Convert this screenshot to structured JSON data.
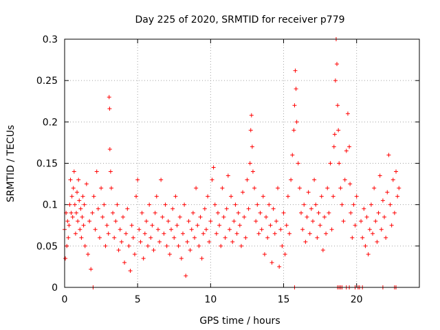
{
  "chart_data": {
    "type": "scatter",
    "title": "Day 225 of 2020, SRMTID for receiver p779",
    "xlabel": "GPS time / hours",
    "ylabel": "SRMTID / TECUs",
    "xlim": [
      0,
      24.3
    ],
    "ylim": [
      0,
      0.3
    ],
    "xticks": [
      0,
      5,
      10,
      15,
      20
    ],
    "xtick_labels": [
      "0",
      "5",
      "10",
      "15",
      "20"
    ],
    "yticks": [
      0,
      0.05,
      0.1,
      0.15,
      0.2,
      0.25,
      0.3
    ],
    "ytick_labels": [
      "0",
      "0.05",
      "0.1",
      "0.15",
      "0.2",
      "0.25",
      "0.3"
    ],
    "grid": true,
    "marker": "+",
    "color": "#ff0000",
    "series": [
      {
        "name": "SRMTID",
        "points": [
          [
            0.0,
            0.07
          ],
          [
            0.05,
            0.035
          ],
          [
            0.1,
            0.09
          ],
          [
            0.15,
            0.05
          ],
          [
            0.2,
            0.08
          ],
          [
            0.25,
            0.06
          ],
          [
            0.3,
            0.075
          ],
          [
            0.35,
            0.1
          ],
          [
            0.4,
            0.13
          ],
          [
            0.45,
            0.09
          ],
          [
            0.5,
            0.11
          ],
          [
            0.55,
            0.085
          ],
          [
            0.6,
            0.12
          ],
          [
            0.65,
            0.14
          ],
          [
            0.7,
            0.1
          ],
          [
            0.75,
            0.065
          ],
          [
            0.8,
            0.09
          ],
          [
            0.85,
            0.115
          ],
          [
            0.9,
            0.08
          ],
          [
            0.95,
            0.13
          ],
          [
            1.0,
            0.105
          ],
          [
            1.05,
            0.07
          ],
          [
            1.1,
            0.095
          ],
          [
            1.15,
            0.06
          ],
          [
            1.2,
            0.085
          ],
          [
            1.25,
            0.11
          ],
          [
            1.3,
            0.075
          ],
          [
            1.35,
            0.1
          ],
          [
            1.4,
            0.05
          ],
          [
            1.5,
            0.125
          ],
          [
            1.6,
            0.04
          ],
          [
            1.7,
            0.08
          ],
          [
            1.8,
            0.022
          ],
          [
            1.9,
            0.09
          ],
          [
            2.0,
            0.11
          ],
          [
            2.1,
            0.07
          ],
          [
            2.2,
            0.14
          ],
          [
            2.3,
            0.095
          ],
          [
            2.4,
            0.06
          ],
          [
            2.5,
            0.12
          ],
          [
            2.6,
            0.085
          ],
          [
            2.7,
            0.1
          ],
          [
            2.8,
            0.05
          ],
          [
            2.9,
            0.075
          ],
          [
            3.0,
            0.065
          ],
          [
            3.05,
            0.23
          ],
          [
            3.08,
            0.216
          ],
          [
            3.1,
            0.167
          ],
          [
            3.15,
            0.14
          ],
          [
            3.2,
            0.12
          ],
          [
            3.3,
            0.09
          ],
          [
            3.4,
            0.06
          ],
          [
            3.5,
            0.08
          ],
          [
            3.6,
            0.1
          ],
          [
            3.7,
            0.045
          ],
          [
            3.8,
            0.07
          ],
          [
            3.9,
            0.055
          ],
          [
            4.0,
            0.085
          ],
          [
            4.1,
            0.03
          ],
          [
            4.2,
            0.065
          ],
          [
            4.3,
            0.095
          ],
          [
            4.4,
            0.05
          ],
          [
            4.5,
            0.02
          ],
          [
            4.6,
            0.075
          ],
          [
            4.7,
            0.06
          ],
          [
            4.8,
            0.04
          ],
          [
            4.9,
            0.11
          ],
          [
            5.0,
            0.13
          ],
          [
            5.1,
            0.07
          ],
          [
            5.2,
            0.055
          ],
          [
            5.3,
            0.09
          ],
          [
            5.4,
            0.035
          ],
          [
            5.5,
            0.065
          ],
          [
            5.6,
            0.08
          ],
          [
            5.7,
            0.05
          ],
          [
            5.8,
            0.1
          ],
          [
            5.9,
            0.06
          ],
          [
            6.0,
            0.075
          ],
          [
            6.1,
            0.045
          ],
          [
            6.2,
            0.09
          ],
          [
            6.3,
            0.11
          ],
          [
            6.4,
            0.07
          ],
          [
            6.5,
            0.055
          ],
          [
            6.6,
            0.13
          ],
          [
            6.7,
            0.085
          ],
          [
            6.8,
            0.065
          ],
          [
            6.9,
            0.1
          ],
          [
            7.0,
            0.05
          ],
          [
            7.1,
            0.08
          ],
          [
            7.2,
            0.04
          ],
          [
            7.3,
            0.07
          ],
          [
            7.4,
            0.095
          ],
          [
            7.5,
            0.06
          ],
          [
            7.6,
            0.11
          ],
          [
            7.7,
            0.075
          ],
          [
            7.8,
            0.05
          ],
          [
            7.9,
            0.085
          ],
          [
            8.0,
            0.035
          ],
          [
            8.1,
            0.065
          ],
          [
            8.2,
            0.1
          ],
          [
            8.3,
            0.014
          ],
          [
            8.4,
            0.055
          ],
          [
            8.5,
            0.08
          ],
          [
            8.6,
            0.045
          ],
          [
            8.7,
            0.07
          ],
          [
            8.8,
            0.09
          ],
          [
            8.9,
            0.06
          ],
          [
            9.0,
            0.12
          ],
          [
            9.1,
            0.075
          ],
          [
            9.2,
            0.05
          ],
          [
            9.3,
            0.085
          ],
          [
            9.4,
            0.035
          ],
          [
            9.5,
            0.065
          ],
          [
            9.6,
            0.095
          ],
          [
            9.7,
            0.07
          ],
          [
            9.8,
            0.11
          ],
          [
            9.9,
            0.055
          ],
          [
            10.0,
            0.08
          ],
          [
            10.1,
            0.13
          ],
          [
            10.2,
            0.145
          ],
          [
            10.3,
            0.1
          ],
          [
            10.4,
            0.065
          ],
          [
            10.5,
            0.09
          ],
          [
            10.6,
            0.075
          ],
          [
            10.7,
            0.05
          ],
          [
            10.8,
            0.12
          ],
          [
            10.9,
            0.085
          ],
          [
            11.0,
            0.06
          ],
          [
            11.1,
            0.095
          ],
          [
            11.2,
            0.135
          ],
          [
            11.3,
            0.07
          ],
          [
            11.4,
            0.11
          ],
          [
            11.5,
            0.055
          ],
          [
            11.6,
            0.08
          ],
          [
            11.7,
            0.1
          ],
          [
            11.8,
            0.065
          ],
          [
            11.9,
            0.09
          ],
          [
            12.0,
            0.075
          ],
          [
            12.1,
            0.05
          ],
          [
            12.2,
            0.115
          ],
          [
            12.3,
            0.085
          ],
          [
            12.4,
            0.06
          ],
          [
            12.5,
            0.13
          ],
          [
            12.6,
            0.095
          ],
          [
            12.7,
            0.15
          ],
          [
            12.75,
            0.19
          ],
          [
            12.8,
            0.208
          ],
          [
            12.85,
            0.17
          ],
          [
            12.9,
            0.14
          ],
          [
            13.0,
            0.12
          ],
          [
            13.1,
            0.08
          ],
          [
            13.2,
            0.1
          ],
          [
            13.3,
            0.065
          ],
          [
            13.4,
            0.09
          ],
          [
            13.5,
            0.07
          ],
          [
            13.6,
            0.11
          ],
          [
            13.7,
            0.04
          ],
          [
            13.8,
            0.085
          ],
          [
            13.9,
            0.06
          ],
          [
            14.0,
            0.1
          ],
          [
            14.1,
            0.075
          ],
          [
            14.2,
            0.03
          ],
          [
            14.3,
            0.095
          ],
          [
            14.4,
            0.065
          ],
          [
            14.5,
            0.08
          ],
          [
            14.6,
            0.12
          ],
          [
            14.7,
            0.025
          ],
          [
            14.8,
            0.07
          ],
          [
            14.9,
            0.05
          ],
          [
            15.0,
            0.09
          ],
          [
            15.1,
            0.04
          ],
          [
            15.2,
            0.075
          ],
          [
            15.3,
            0.11
          ],
          [
            15.4,
            0.065
          ],
          [
            15.5,
            0.13
          ],
          [
            15.6,
            0.16
          ],
          [
            15.7,
            0.19
          ],
          [
            15.75,
            0.22
          ],
          [
            15.8,
            0.262
          ],
          [
            15.85,
            0.24
          ],
          [
            15.9,
            0.2
          ],
          [
            16.0,
            0.15
          ],
          [
            16.1,
            0.12
          ],
          [
            16.2,
            0.09
          ],
          [
            16.3,
            0.07
          ],
          [
            16.4,
            0.1
          ],
          [
            16.5,
            0.055
          ],
          [
            16.6,
            0.085
          ],
          [
            16.7,
            0.115
          ],
          [
            16.8,
            0.065
          ],
          [
            16.9,
            0.095
          ],
          [
            17.0,
            0.08
          ],
          [
            17.1,
            0.13
          ],
          [
            17.2,
            0.1
          ],
          [
            17.3,
            0.06
          ],
          [
            17.4,
            0.09
          ],
          [
            17.5,
            0.075
          ],
          [
            17.6,
            0.11
          ],
          [
            17.7,
            0.045
          ],
          [
            17.8,
            0.085
          ],
          [
            17.9,
            0.065
          ],
          [
            18.0,
            0.12
          ],
          [
            18.1,
            0.09
          ],
          [
            18.2,
            0.15
          ],
          [
            18.3,
            0.07
          ],
          [
            18.4,
            0.11
          ],
          [
            18.45,
            0.17
          ],
          [
            18.5,
            0.185
          ],
          [
            18.55,
            0.25
          ],
          [
            18.6,
            0.3
          ],
          [
            18.65,
            0.27
          ],
          [
            18.7,
            0.22
          ],
          [
            18.75,
            0.19
          ],
          [
            18.8,
            0.15
          ],
          [
            18.9,
            0.12
          ],
          [
            19.0,
            0.1
          ],
          [
            19.1,
            0.08
          ],
          [
            19.2,
            0.13
          ],
          [
            19.3,
            0.165
          ],
          [
            19.4,
            0.21
          ],
          [
            19.5,
            0.17
          ],
          [
            19.55,
            0.125
          ],
          [
            19.6,
            0.09
          ],
          [
            19.7,
            0.06
          ],
          [
            19.8,
            0.1
          ],
          [
            19.9,
            0.075
          ],
          [
            20.0,
            0.11
          ],
          [
            20.3,
            0.08
          ],
          [
            20.4,
            0.06
          ],
          [
            20.5,
            0.095
          ],
          [
            20.6,
            0.05
          ],
          [
            20.7,
            0.085
          ],
          [
            20.8,
            0.04
          ],
          [
            20.9,
            0.07
          ],
          [
            21.0,
            0.1
          ],
          [
            21.1,
            0.065
          ],
          [
            21.2,
            0.12
          ],
          [
            21.3,
            0.08
          ],
          [
            21.4,
            0.055
          ],
          [
            21.5,
            0.09
          ],
          [
            21.6,
            0.135
          ],
          [
            21.7,
            0.07
          ],
          [
            21.8,
            0.105
          ],
          [
            21.9,
            0.085
          ],
          [
            22.0,
            0.06
          ],
          [
            22.1,
            0.115
          ],
          [
            22.2,
            0.16
          ],
          [
            22.3,
            0.1
          ],
          [
            22.4,
            0.075
          ],
          [
            22.5,
            0.13
          ],
          [
            22.6,
            0.09
          ],
          [
            22.7,
            0.14
          ],
          [
            22.8,
            0.11
          ],
          [
            22.9,
            0.12
          ],
          [
            1.95,
            0.0
          ],
          [
            15.75,
            0.0
          ],
          [
            18.7,
            0.0
          ],
          [
            18.8,
            0.0
          ],
          [
            18.9,
            0.0
          ],
          [
            19.0,
            0.0
          ],
          [
            19.3,
            0.0
          ],
          [
            19.5,
            0.0
          ],
          [
            19.9,
            0.0
          ],
          [
            20.1,
            0.0
          ],
          [
            20.2,
            0.0
          ],
          [
            20.4,
            0.0
          ],
          [
            21.8,
            0.0
          ],
          [
            22.6,
            0.0
          ],
          [
            22.7,
            0.0
          ]
        ]
      }
    ]
  }
}
